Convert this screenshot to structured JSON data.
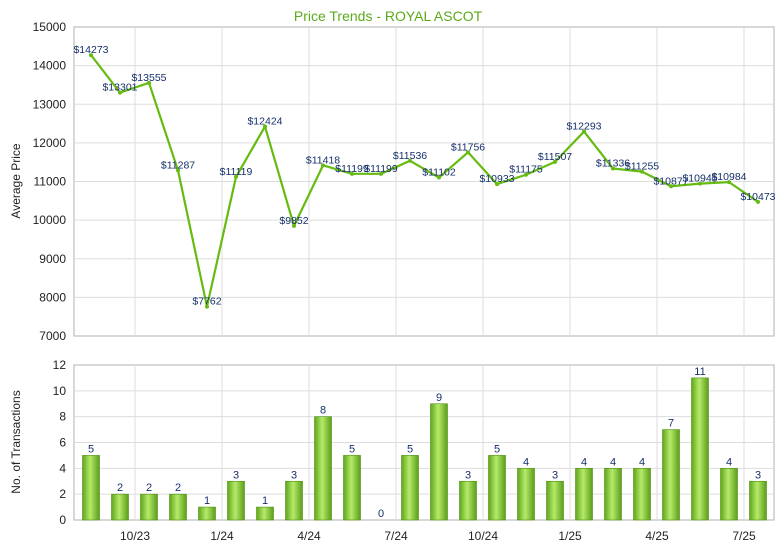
{
  "chart_data": [
    {
      "type": "line",
      "title": "Price Trends - ROYAL ASCOT",
      "xlabel": "",
      "ylabel": "Average Price",
      "ylim": [
        7000,
        15000
      ],
      "yticks": [
        7000,
        8000,
        9000,
        10000,
        11000,
        12000,
        13000,
        14000,
        15000
      ],
      "grid": true,
      "values": [
        14273,
        13301,
        13555,
        11287,
        7762,
        11119,
        12424,
        9852,
        11418,
        11199,
        11199,
        11536,
        11102,
        11756,
        10933,
        11175,
        11507,
        12293,
        11336,
        11255,
        10877,
        10945,
        10984,
        10473
      ],
      "labels": [
        "$14273",
        "$13301",
        "$13555",
        "$11287",
        "$7762",
        "$11119",
        "$12424",
        "$9852",
        "$11418",
        "$11199",
        "$11199",
        "$11536",
        "$11102",
        "$11756",
        "$10933",
        "$11175",
        "$11507",
        "$12293",
        "$11336",
        "$11255",
        "$10877",
        "$10945",
        "$10984",
        "$10473"
      ],
      "line_color": "#66bb11"
    },
    {
      "type": "bar",
      "title": "",
      "xlabel": "",
      "ylabel": "No. of Transactions",
      "ylim": [
        0,
        12
      ],
      "yticks": [
        0,
        2,
        4,
        6,
        8,
        10,
        12
      ],
      "grid": true,
      "x_tick_labels": [
        "10/23",
        "1/24",
        "4/24",
        "7/24",
        "10/24",
        "1/25",
        "4/25",
        "7/25"
      ],
      "values": [
        5,
        2,
        2,
        2,
        1,
        3,
        1,
        3,
        8,
        5,
        0,
        5,
        9,
        3,
        5,
        4,
        3,
        4,
        4,
        4,
        7,
        11,
        4,
        3
      ],
      "bar_color": "#7ec82a"
    }
  ]
}
